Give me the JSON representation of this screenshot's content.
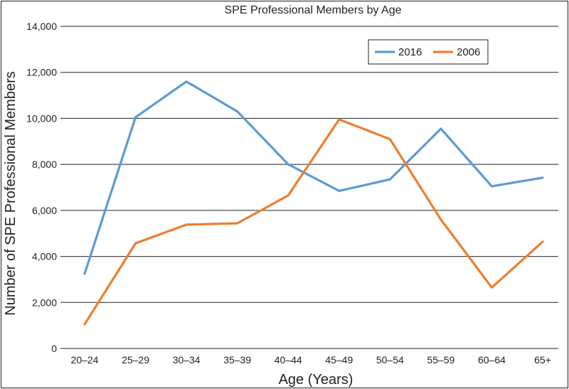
{
  "chart_data": {
    "type": "line",
    "title": "SPE Professional Members by Age",
    "xlabel": "Age (Years)",
    "ylabel": "Number of SPE Professional Members",
    "categories": [
      "20–24",
      "25–29",
      "30–34",
      "35–39",
      "40–44",
      "45–49",
      "50–54",
      "55–59",
      "60–64",
      "65+"
    ],
    "yticks": [
      "0",
      "2,000",
      "4,000",
      "6,000",
      "8,000",
      "10,000",
      "12,000",
      "14,000"
    ],
    "ylim": [
      0,
      14000
    ],
    "grid": true,
    "legend_position": "top-right",
    "series": [
      {
        "name": "2016",
        "color": "#5b9bd5",
        "values": [
          3250,
          10050,
          11600,
          10300,
          8000,
          6850,
          7350,
          9550,
          7050,
          7420
        ]
      },
      {
        "name": "2006",
        "color": "#ed7d31",
        "values": [
          1050,
          4570,
          5380,
          5440,
          6650,
          9950,
          9100,
          5600,
          2650,
          4640
        ]
      }
    ]
  }
}
